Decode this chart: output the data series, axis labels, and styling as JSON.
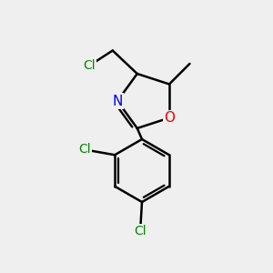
{
  "background_color": "#efefef",
  "bond_color": "#000000",
  "bond_width": 1.8,
  "atom_colors": {
    "N": "#0000ee",
    "O": "#ee0000",
    "Cl_green": "#008800",
    "C": "#000000"
  },
  "font_size_atom": 10,
  "fig_width": 3.0,
  "fig_height": 3.0,
  "dpi": 100,
  "xlim": [
    0,
    10
  ],
  "ylim": [
    0,
    10
  ]
}
